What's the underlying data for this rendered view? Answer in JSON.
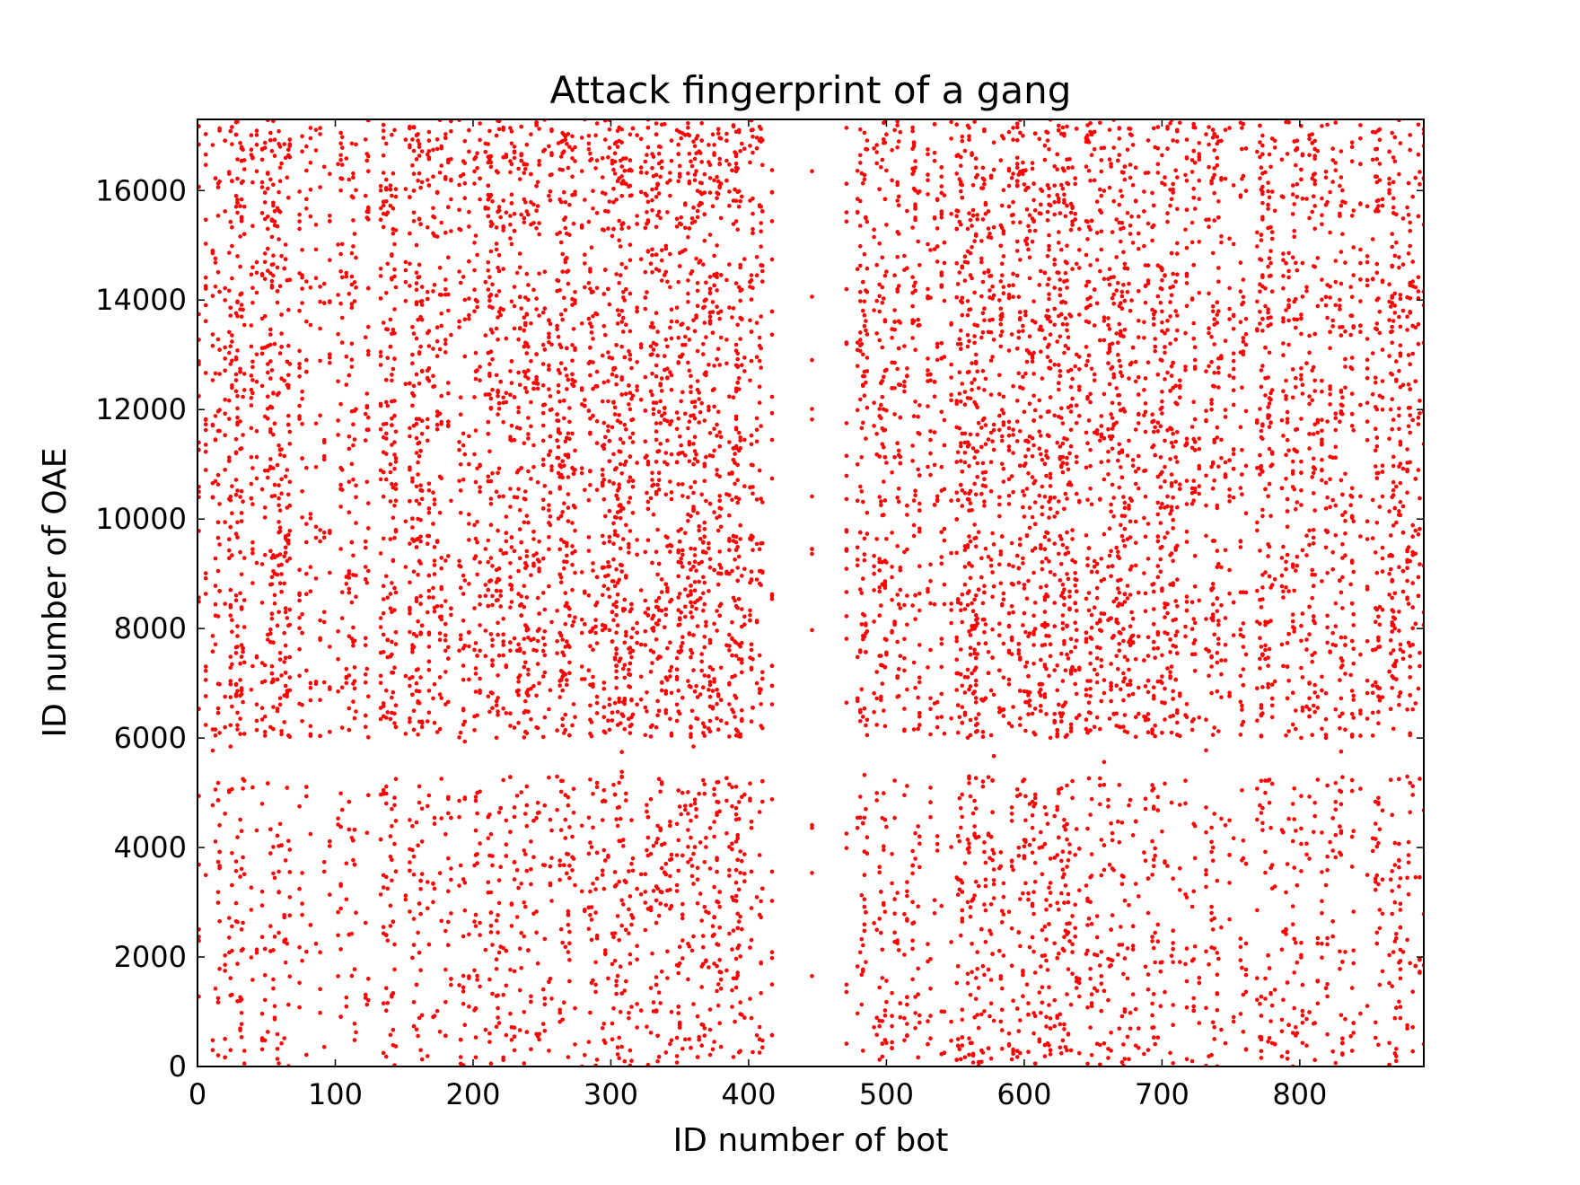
{
  "chart_data": {
    "type": "scatter",
    "title": "Attack fingerprint of a gang",
    "xlabel": "ID number of bot",
    "ylabel": "ID number of OAE",
    "xlim": [
      0,
      890
    ],
    "ylim": [
      0,
      17300
    ],
    "x_ticks": [
      0,
      100,
      200,
      300,
      400,
      500,
      600,
      700,
      800
    ],
    "y_ticks": [
      0,
      2000,
      4000,
      6000,
      8000,
      10000,
      12000,
      14000,
      16000
    ],
    "x_tick_labels": [
      "0",
      "100",
      "200",
      "300",
      "400",
      "500",
      "600",
      "700",
      "800"
    ],
    "y_tick_labels": [
      "0",
      "2000",
      "4000",
      "6000",
      "8000",
      "10000",
      "12000",
      "14000",
      "16000"
    ],
    "marker_color": "#ff0000",
    "grid": false,
    "legend": "none",
    "series": [
      {
        "x_range": [
          0,
          890
        ],
        "y_range": [
          0,
          17300
        ],
        "point_count": 10000,
        "dense_y_bands": [
          [
            6000,
            9800
          ],
          [
            10200,
            14700
          ],
          [
            15200,
            17300
          ]
        ],
        "sparse_y_bands": [
          [
            5300,
            6000
          ]
        ],
        "dense_x_bands": [
          [
            210,
            270
          ],
          [
            285,
            375
          ],
          [
            560,
            640
          ],
          [
            655,
            695
          ]
        ],
        "sparse_x_bands": [
          [
            420,
            470
          ]
        ]
      }
    ]
  }
}
